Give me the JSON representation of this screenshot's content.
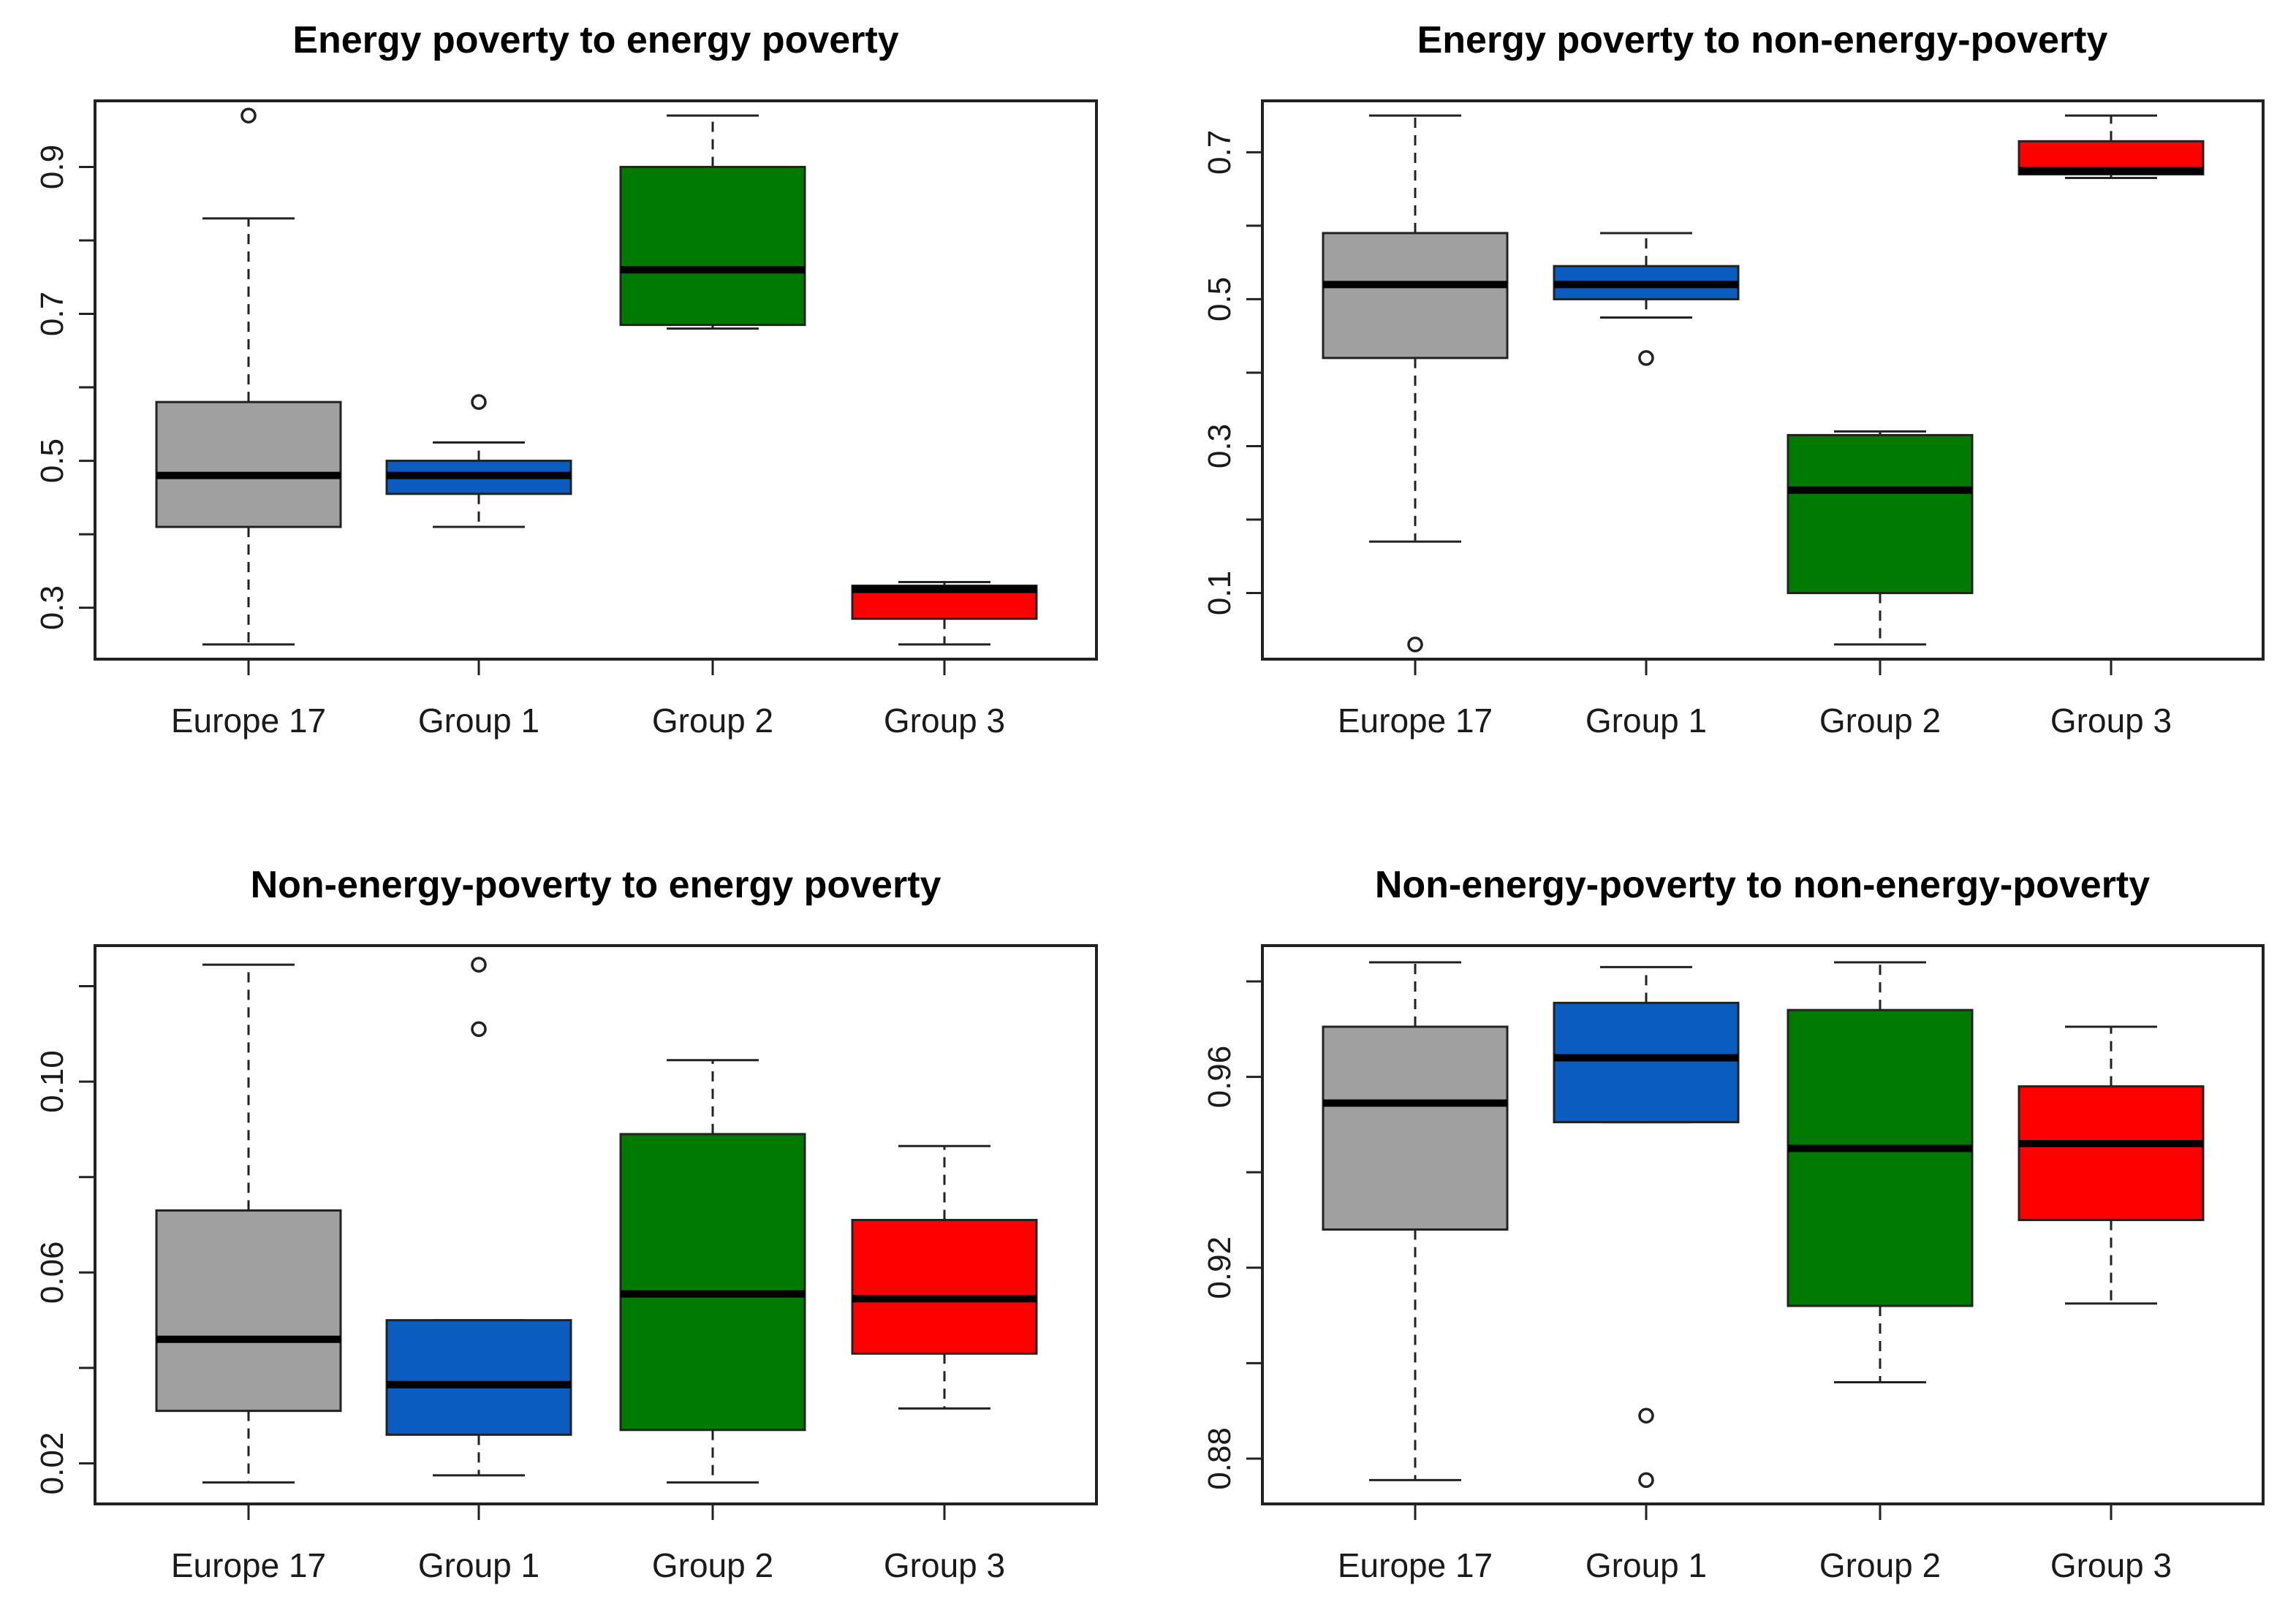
{
  "chart_data": [
    {
      "type": "boxplot",
      "title": "Energy poverty to energy poverty",
      "categories": [
        "Europe 17",
        "Group 1",
        "Group 2",
        "Group 3"
      ],
      "ylim": [
        0.23,
        0.99
      ],
      "yticks": [
        0.3,
        0.5,
        0.7,
        0.9
      ],
      "ytick_labels": [
        "0.3",
        "0.5",
        "0.7",
        "0.9"
      ],
      "boxes": [
        {
          "category": "Europe 17",
          "color": "#a0a0a0",
          "whisker_low": 0.25,
          "q1": 0.41,
          "median": 0.48,
          "q3": 0.58,
          "whisker_high": 0.83,
          "outliers": [
            0.97
          ]
        },
        {
          "category": "Group 1",
          "color": "#0a5cbf",
          "whisker_low": 0.41,
          "q1": 0.455,
          "median": 0.48,
          "q3": 0.5,
          "whisker_high": 0.525,
          "outliers": [
            0.58
          ]
        },
        {
          "category": "Group 2",
          "color": "#007a00",
          "whisker_low": 0.68,
          "q1": 0.685,
          "median": 0.76,
          "q3": 0.9,
          "whisker_high": 0.97,
          "outliers": []
        },
        {
          "category": "Group 3",
          "color": "#ff0000",
          "whisker_low": 0.25,
          "q1": 0.285,
          "median": 0.325,
          "q3": 0.33,
          "whisker_high": 0.335,
          "outliers": []
        }
      ]
    },
    {
      "type": "boxplot",
      "title": "Energy poverty to non-energy-poverty",
      "categories": [
        "Europe 17",
        "Group 1",
        "Group 2",
        "Group 3"
      ],
      "ylim": [
        0.01,
        0.77
      ],
      "yticks": [
        0.1,
        0.3,
        0.5,
        0.7
      ],
      "ytick_labels": [
        "0.1",
        "0.3",
        "0.5",
        "0.7"
      ],
      "boxes": [
        {
          "category": "Europe 17",
          "color": "#a0a0a0",
          "whisker_low": 0.17,
          "q1": 0.42,
          "median": 0.52,
          "q3": 0.59,
          "whisker_high": 0.75,
          "outliers": [
            0.03
          ]
        },
        {
          "category": "Group 1",
          "color": "#0a5cbf",
          "whisker_low": 0.475,
          "q1": 0.5,
          "median": 0.52,
          "q3": 0.545,
          "whisker_high": 0.59,
          "outliers": [
            0.42
          ]
        },
        {
          "category": "Group 2",
          "color": "#007a00",
          "whisker_low": 0.03,
          "q1": 0.1,
          "median": 0.24,
          "q3": 0.315,
          "whisker_high": 0.32,
          "outliers": []
        },
        {
          "category": "Group 3",
          "color": "#ff0000",
          "whisker_low": 0.665,
          "q1": 0.67,
          "median": 0.675,
          "q3": 0.715,
          "whisker_high": 0.75,
          "outliers": []
        }
      ]
    },
    {
      "type": "boxplot",
      "title": "Non-energy-poverty to energy poverty",
      "categories": [
        "Europe 17",
        "Group 1",
        "Group 2",
        "Group 3"
      ],
      "ylim": [
        0.0115,
        0.1285
      ],
      "yticks": [
        0.02,
        0.06,
        0.1
      ],
      "ytick_labels": [
        "0.02",
        "0.06",
        "0.10"
      ],
      "boxes": [
        {
          "category": "Europe 17",
          "color": "#a0a0a0",
          "whisker_low": 0.016,
          "q1": 0.031,
          "median": 0.046,
          "q3": 0.073,
          "whisker_high": 0.1245,
          "outliers": []
        },
        {
          "category": "Group 1",
          "color": "#0a5cbf",
          "whisker_low": 0.0175,
          "q1": 0.026,
          "median": 0.0365,
          "q3": 0.05,
          "whisker_high": 0.05,
          "outliers": [
            0.1245,
            0.111
          ]
        },
        {
          "category": "Group 2",
          "color": "#007a00",
          "whisker_low": 0.016,
          "q1": 0.027,
          "median": 0.0555,
          "q3": 0.089,
          "whisker_high": 0.1045,
          "outliers": []
        },
        {
          "category": "Group 3",
          "color": "#ff0000",
          "whisker_low": 0.0315,
          "q1": 0.043,
          "median": 0.0545,
          "q3": 0.071,
          "whisker_high": 0.0865,
          "outliers": []
        }
      ]
    },
    {
      "type": "boxplot",
      "title": "Non-energy-poverty to non-energy-poverty",
      "categories": [
        "Europe 17",
        "Group 1",
        "Group 2",
        "Group 3"
      ],
      "ylim": [
        0.8705,
        0.9875
      ],
      "yticks": [
        0.88,
        0.92,
        0.96
      ],
      "ytick_labels": [
        "0.88",
        "0.92",
        "0.96"
      ],
      "boxes": [
        {
          "category": "Europe 17",
          "color": "#a0a0a0",
          "whisker_low": 0.8755,
          "q1": 0.928,
          "median": 0.9545,
          "q3": 0.9705,
          "whisker_high": 0.984,
          "outliers": []
        },
        {
          "category": "Group 1",
          "color": "#0a5cbf",
          "whisker_low": 0.9505,
          "q1": 0.9505,
          "median": 0.964,
          "q3": 0.9755,
          "whisker_high": 0.983,
          "outliers": [
            0.889,
            0.8755
          ]
        },
        {
          "category": "Group 2",
          "color": "#007a00",
          "whisker_low": 0.896,
          "q1": 0.912,
          "median": 0.945,
          "q3": 0.974,
          "whisker_high": 0.984,
          "outliers": []
        },
        {
          "category": "Group 3",
          "color": "#ff0000",
          "whisker_low": 0.9125,
          "q1": 0.93,
          "median": 0.946,
          "q3": 0.958,
          "whisker_high": 0.9705,
          "outliers": []
        }
      ]
    }
  ]
}
